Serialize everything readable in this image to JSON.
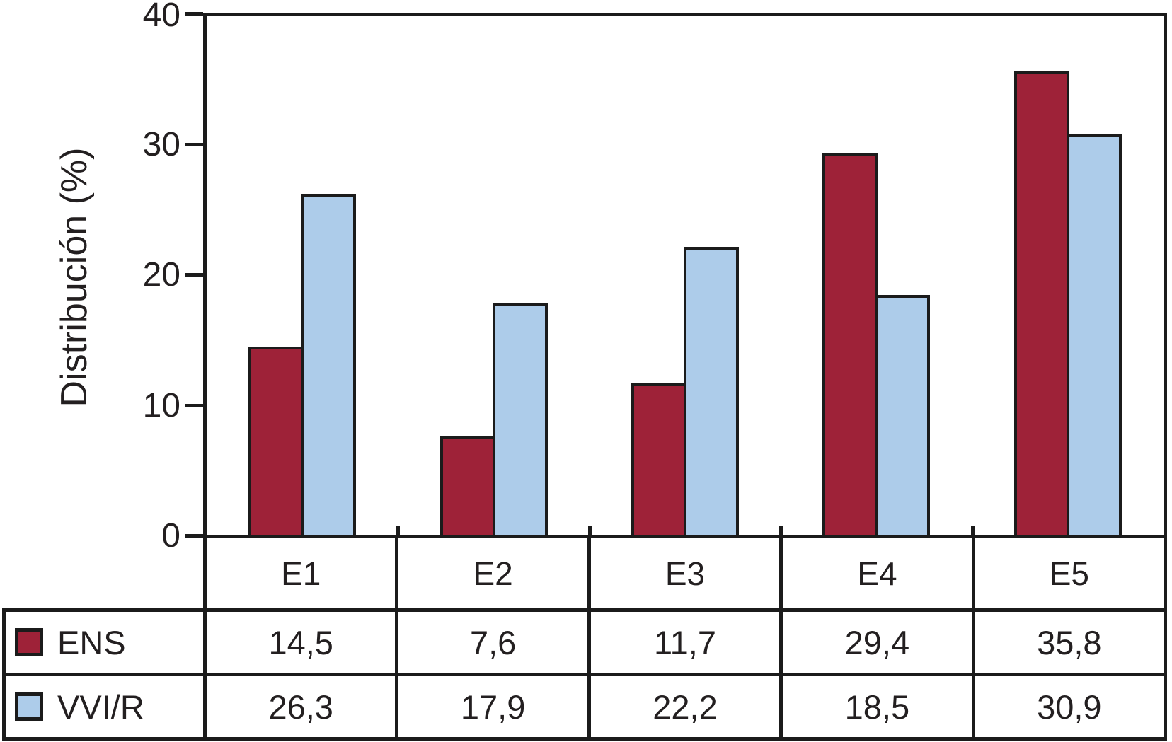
{
  "chart_data": {
    "type": "bar",
    "title": "",
    "xlabel": "",
    "ylabel": "Distribución (%)",
    "ylim": [
      0,
      40
    ],
    "yticks": [
      "40",
      "30",
      "20",
      "10",
      "0"
    ],
    "grid": false,
    "legend_position": "table-left",
    "decimal_separator": ",",
    "categories": [
      "E1",
      "E2",
      "E3",
      "E4",
      "E5"
    ],
    "series": [
      {
        "name": "ENS",
        "color": "#9e2238",
        "values": [
          14.5,
          7.6,
          11.7,
          29.4,
          35.8
        ],
        "labels": [
          "14,5",
          "7,6",
          "11,7",
          "29,4",
          "35,8"
        ]
      },
      {
        "name": "VVI/R",
        "color": "#adccea",
        "values": [
          26.3,
          17.9,
          22.2,
          18.5,
          30.9
        ],
        "labels": [
          "26,3",
          "17,9",
          "22,2",
          "18,5",
          "30,9"
        ]
      }
    ],
    "colors": {
      "axis_line": "#1b1b1b",
      "text": "#231f20",
      "background": "#ffffff"
    }
  }
}
